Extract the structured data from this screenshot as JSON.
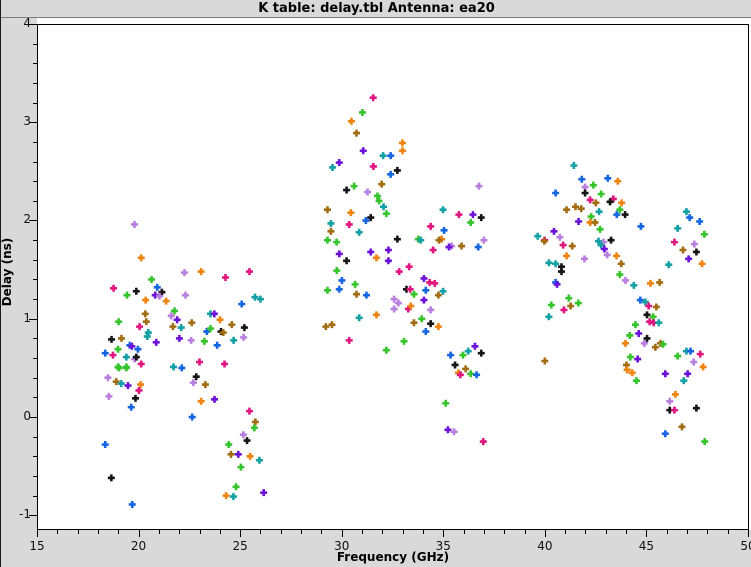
{
  "window": {
    "title": "K table: delay.tbl   Antenna: ea20"
  },
  "axes": {
    "x_title": "Frequency (GHz)",
    "y_title": "Delay (ns)"
  },
  "chart_data": {
    "type": "scatter",
    "title": "K table: delay.tbl   Antenna: ea20",
    "xlabel": "Frequency (GHz)",
    "ylabel": "Delay (ns)",
    "xlim": [
      15,
      50
    ],
    "ylim": [
      -1.14,
      4
    ],
    "x_major_ticks": [
      15,
      20,
      25,
      30,
      35,
      40,
      45,
      50
    ],
    "y_major_ticks": [
      4,
      3,
      2,
      1,
      0,
      -1
    ],
    "x_minor_step": 1,
    "y_minor_step": 0.2,
    "grid": false,
    "legend": "none",
    "marker": "plus",
    "marker_size_px": 7,
    "background": "#ffffff",
    "figure_background": "#d9d9d9",
    "palette": {
      "B": "#1565e0",
      "G": "#35c42c",
      "P": "#e01580",
      "T": "#12a0a4",
      "V": "#6c12d8",
      "O": "#b97fe0",
      "K": "#151515",
      "R": "#ef830f",
      "D": "#a26d12"
    },
    "points": [
      [
        19.75,
        1.97,
        "O"
      ],
      [
        20.08,
        1.63,
        "R"
      ],
      [
        20.59,
        1.41,
        "G"
      ],
      [
        18.72,
        1.32,
        "P"
      ],
      [
        25.41,
        1.49,
        "P"
      ],
      [
        24.23,
        1.43,
        "P"
      ],
      [
        23.03,
        1.49,
        "R"
      ],
      [
        22.21,
        1.48,
        "O"
      ],
      [
        19.84,
        1.29,
        "K"
      ],
      [
        19.38,
        1.25,
        "G"
      ],
      [
        20.87,
        1.33,
        "B"
      ],
      [
        21.1,
        1.28,
        "K"
      ],
      [
        20.77,
        1.25,
        "V"
      ],
      [
        20.98,
        1.24,
        "O"
      ],
      [
        22.26,
        1.25,
        "O"
      ],
      [
        21.31,
        1.19,
        "R"
      ],
      [
        25.95,
        1.21,
        "T"
      ],
      [
        25.68,
        1.23,
        "T"
      ],
      [
        25.03,
        1.16,
        "B"
      ],
      [
        20.0,
        0.93,
        "P"
      ],
      [
        18.97,
        0.98,
        "G"
      ],
      [
        20.28,
        1.06,
        "D"
      ],
      [
        20.43,
        0.87,
        "T"
      ],
      [
        20.3,
        1.2,
        "R"
      ],
      [
        20.33,
        0.98,
        "D"
      ],
      [
        20.38,
        0.83,
        "T"
      ],
      [
        18.94,
        0.7,
        "G"
      ],
      [
        19.35,
        0.62,
        "T"
      ],
      [
        18.62,
        0.8,
        "K"
      ],
      [
        19.11,
        0.81,
        "D"
      ],
      [
        19.52,
        0.74,
        "B"
      ],
      [
        19.62,
        0.73,
        "V"
      ],
      [
        18.31,
        0.66,
        "B"
      ],
      [
        18.69,
        0.64,
        "P"
      ],
      [
        19.76,
        0.6,
        "O"
      ],
      [
        18.99,
        0.51,
        "G"
      ],
      [
        19.35,
        0.52,
        "G"
      ],
      [
        20.82,
        0.77,
        "V"
      ],
      [
        23.49,
        1.06,
        "T"
      ],
      [
        23.68,
        1.06,
        "V"
      ],
      [
        21.72,
        1.09,
        "G"
      ],
      [
        21.85,
        1.0,
        "V"
      ],
      [
        21.56,
        1.04,
        "O"
      ],
      [
        22.57,
        0.97,
        "D"
      ],
      [
        23.96,
        1.0,
        "R"
      ],
      [
        23.31,
        0.88,
        "B"
      ],
      [
        23.49,
        0.91,
        "G"
      ],
      [
        24.54,
        0.95,
        "D"
      ],
      [
        24.01,
        0.88,
        "K"
      ],
      [
        24.12,
        0.87,
        "D"
      ],
      [
        25.16,
        0.92,
        "K"
      ],
      [
        22.05,
        0.92,
        "T"
      ],
      [
        21.64,
        0.93,
        "D"
      ],
      [
        21.96,
        0.81,
        "V"
      ],
      [
        22.54,
        0.79,
        "O"
      ],
      [
        24.63,
        0.79,
        "T"
      ],
      [
        25.12,
        0.82,
        "O"
      ],
      [
        23.19,
        0.78,
        "G"
      ],
      [
        23.82,
        0.74,
        "B"
      ],
      [
        20.08,
        0.55,
        "P"
      ],
      [
        19.84,
        0.62,
        "K"
      ],
      [
        19.92,
        0.7,
        "B"
      ],
      [
        18.94,
        0.52,
        "G"
      ],
      [
        19.35,
        0.51,
        "G"
      ],
      [
        18.44,
        0.41,
        "O"
      ],
      [
        18.85,
        0.37,
        "D"
      ],
      [
        19.1,
        0.35,
        "T"
      ],
      [
        19.43,
        0.33,
        "V"
      ],
      [
        20.05,
        0.34,
        "R"
      ],
      [
        19.97,
        0.28,
        "P"
      ],
      [
        18.49,
        0.22,
        "O"
      ],
      [
        19.8,
        0.2,
        "K"
      ],
      [
        19.59,
        0.11,
        "B"
      ],
      [
        21.67,
        0.52,
        "T"
      ],
      [
        22.08,
        0.51,
        "B"
      ],
      [
        22.79,
        0.42,
        "K"
      ],
      [
        22.65,
        0.36,
        "O"
      ],
      [
        23.24,
        0.34,
        "D"
      ],
      [
        23.03,
        0.17,
        "R"
      ],
      [
        23.69,
        0.19,
        "V"
      ],
      [
        22.59,
        0.01,
        "B"
      ],
      [
        25.41,
        0.07,
        "P"
      ],
      [
        25.7,
        -0.04,
        "D"
      ],
      [
        25.65,
        -0.1,
        "G"
      ],
      [
        25.11,
        -0.17,
        "O"
      ],
      [
        25.29,
        -0.23,
        "K"
      ],
      [
        24.39,
        -0.27,
        "G"
      ],
      [
        24.5,
        -0.37,
        "D"
      ],
      [
        24.86,
        -0.37,
        "V"
      ],
      [
        25.44,
        -0.39,
        "R"
      ],
      [
        25.9,
        -0.43,
        "T"
      ],
      [
        24.99,
        -0.5,
        "G"
      ],
      [
        18.31,
        -0.27,
        "B"
      ],
      [
        18.61,
        -0.61,
        "K"
      ],
      [
        24.75,
        -0.7,
        "G"
      ],
      [
        24.26,
        -0.79,
        "R"
      ],
      [
        24.62,
        -0.8,
        "T"
      ],
      [
        26.11,
        -0.76,
        "V"
      ],
      [
        19.64,
        -0.88,
        "B"
      ],
      [
        22.95,
        0.57,
        "P"
      ],
      [
        24.18,
        0.55,
        "P"
      ],
      [
        31.5,
        3.26,
        "P"
      ],
      [
        30.97,
        3.11,
        "G"
      ],
      [
        30.43,
        3.02,
        "R"
      ],
      [
        30.68,
        2.9,
        "D"
      ],
      [
        32.94,
        2.8,
        "R"
      ],
      [
        32.94,
        2.72,
        "R"
      ],
      [
        31.01,
        2.72,
        "V"
      ],
      [
        31.99,
        2.67,
        "T"
      ],
      [
        32.36,
        2.67,
        "B"
      ],
      [
        31.51,
        2.56,
        "P"
      ],
      [
        29.5,
        2.55,
        "T"
      ],
      [
        29.83,
        2.6,
        "V"
      ],
      [
        32.69,
        2.52,
        "K"
      ],
      [
        32.36,
        2.48,
        "B"
      ],
      [
        31.92,
        2.38,
        "D"
      ],
      [
        30.56,
        2.36,
        "G"
      ],
      [
        30.19,
        2.32,
        "K"
      ],
      [
        31.22,
        2.3,
        "O"
      ],
      [
        31.71,
        2.26,
        "G"
      ],
      [
        31.79,
        2.21,
        "G"
      ],
      [
        32.01,
        2.15,
        "T"
      ],
      [
        36.71,
        2.36,
        "O"
      ],
      [
        29.25,
        2.12,
        "D"
      ],
      [
        30.4,
        2.09,
        "R"
      ],
      [
        34.94,
        2.12,
        "T"
      ],
      [
        32.15,
        2.08,
        "G"
      ],
      [
        31.38,
        2.04,
        "K"
      ],
      [
        29.42,
        1.98,
        "T"
      ],
      [
        30.32,
        1.97,
        "P"
      ],
      [
        31.14,
        2.01,
        "B"
      ],
      [
        30.81,
        1.89,
        "T"
      ],
      [
        34.33,
        1.95,
        "P"
      ],
      [
        35.72,
        2.07,
        "P"
      ],
      [
        36.3,
        1.99,
        "G"
      ],
      [
        34.99,
        1.91,
        "B"
      ],
      [
        36.41,
        2.07,
        "V"
      ],
      [
        36.82,
        2.04,
        "K"
      ],
      [
        29.42,
        1.9,
        "D"
      ],
      [
        29.25,
        1.81,
        "G"
      ],
      [
        29.7,
        1.79,
        "G"
      ],
      [
        34.87,
        1.82,
        "R"
      ],
      [
        34.74,
        1.81,
        "D"
      ],
      [
        33.72,
        1.82,
        "G"
      ],
      [
        33.84,
        1.81,
        "T"
      ],
      [
        32.69,
        1.82,
        "K"
      ],
      [
        34.45,
        1.71,
        "P"
      ],
      [
        35.36,
        1.75,
        "O"
      ],
      [
        35.23,
        1.74,
        "V"
      ],
      [
        36.67,
        1.74,
        "B"
      ],
      [
        36.95,
        1.81,
        "O"
      ],
      [
        35.85,
        1.75,
        "D"
      ],
      [
        31.66,
        1.63,
        "R"
      ],
      [
        32.25,
        1.6,
        "V"
      ],
      [
        29.83,
        1.67,
        "V"
      ],
      [
        30.19,
        1.6,
        "K"
      ],
      [
        31.38,
        1.69,
        "V"
      ],
      [
        32.25,
        1.71,
        "V"
      ],
      [
        32.78,
        1.49,
        "P"
      ],
      [
        33.27,
        1.54,
        "P"
      ],
      [
        29.96,
        1.4,
        "B"
      ],
      [
        30.61,
        1.36,
        "G"
      ],
      [
        29.83,
        1.31,
        "B"
      ],
      [
        29.71,
        1.5,
        "G"
      ],
      [
        29.25,
        1.3,
        "G"
      ],
      [
        30.68,
        1.26,
        "D"
      ],
      [
        31.17,
        1.25,
        "B"
      ],
      [
        34.0,
        1.42,
        "V"
      ],
      [
        34.28,
        1.38,
        "P"
      ],
      [
        34.53,
        1.37,
        "P"
      ],
      [
        33.14,
        1.31,
        "K"
      ],
      [
        33.32,
        1.31,
        "P"
      ],
      [
        34.09,
        1.3,
        "B"
      ],
      [
        34.94,
        1.29,
        "T"
      ],
      [
        34.71,
        1.25,
        "D"
      ],
      [
        33.51,
        1.26,
        "G"
      ],
      [
        32.53,
        1.21,
        "O"
      ],
      [
        32.74,
        1.17,
        "O"
      ],
      [
        34.0,
        1.2,
        "V"
      ],
      [
        33.23,
        1.11,
        "P"
      ],
      [
        32.53,
        1.11,
        "O"
      ],
      [
        33.35,
        1.14,
        "R"
      ],
      [
        34.33,
        1.1,
        "O"
      ],
      [
        30.81,
        1.02,
        "T"
      ],
      [
        31.66,
        1.05,
        "R"
      ],
      [
        29.17,
        0.93,
        "D"
      ],
      [
        29.47,
        0.95,
        "D"
      ],
      [
        33.89,
        1.01,
        "G"
      ],
      [
        33.51,
        0.97,
        "D"
      ],
      [
        34.33,
        0.96,
        "K"
      ],
      [
        34.71,
        0.93,
        "R"
      ],
      [
        34.09,
        0.88,
        "B"
      ],
      [
        30.32,
        0.79,
        "P"
      ],
      [
        33.02,
        0.78,
        "G"
      ],
      [
        32.15,
        0.69,
        "G"
      ],
      [
        35.31,
        0.64,
        "B"
      ],
      [
        35.92,
        0.64,
        "G"
      ],
      [
        36.18,
        0.68,
        "T"
      ],
      [
        36.51,
        0.73,
        "V"
      ],
      [
        36.82,
        0.66,
        "K"
      ],
      [
        35.53,
        0.54,
        "K"
      ],
      [
        36.05,
        0.5,
        "D"
      ],
      [
        35.7,
        0.46,
        "R"
      ],
      [
        35.79,
        0.44,
        "P"
      ],
      [
        36.3,
        0.45,
        "G"
      ],
      [
        36.59,
        0.44,
        "B"
      ],
      [
        35.07,
        0.15,
        "G"
      ],
      [
        35.18,
        -0.12,
        "V"
      ],
      [
        35.48,
        -0.14,
        "O"
      ],
      [
        36.92,
        -0.24,
        "P"
      ],
      [
        43.05,
        2.44,
        "B"
      ],
      [
        43.54,
        2.41,
        "R"
      ],
      [
        42.34,
        2.37,
        "G"
      ],
      [
        41.77,
        2.43,
        "B"
      ],
      [
        41.93,
        2.35,
        "O"
      ],
      [
        41.93,
        2.29,
        "K"
      ],
      [
        42.72,
        2.28,
        "G"
      ],
      [
        42.18,
        2.22,
        "P"
      ],
      [
        43.32,
        2.23,
        "P"
      ],
      [
        43.16,
        2.2,
        "K"
      ],
      [
        43.73,
        2.19,
        "R"
      ],
      [
        42.46,
        2.19,
        "D"
      ],
      [
        41.74,
        2.13,
        "D"
      ],
      [
        42.62,
        2.1,
        "T"
      ],
      [
        42.23,
        2.05,
        "G"
      ],
      [
        43.49,
        2.07,
        "B"
      ],
      [
        43.9,
        2.07,
        "K"
      ],
      [
        41.61,
        2.0,
        "V"
      ],
      [
        42.18,
        1.99,
        "R"
      ],
      [
        42.42,
        1.99,
        "D"
      ],
      [
        42.67,
        1.92,
        "G"
      ],
      [
        44.68,
        1.95,
        "B"
      ],
      [
        42.59,
        1.8,
        "T"
      ],
      [
        42.84,
        1.79,
        "O"
      ],
      [
        43.21,
        1.81,
        "K"
      ],
      [
        42.72,
        1.76,
        "T"
      ],
      [
        42.88,
        1.72,
        "V"
      ],
      [
        41.38,
        2.57,
        "T"
      ],
      [
        40.48,
        2.29,
        "B"
      ],
      [
        41.02,
        2.12,
        "D"
      ],
      [
        41.46,
        2.15,
        "D"
      ],
      [
        43.64,
        2.12,
        "G"
      ],
      [
        39.94,
        1.81,
        "P"
      ],
      [
        39.6,
        1.85,
        "T"
      ],
      [
        40.69,
        1.84,
        "O"
      ],
      [
        40.4,
        1.9,
        "V"
      ],
      [
        39.92,
        1.8,
        "D"
      ],
      [
        40.85,
        1.76,
        "P"
      ],
      [
        41.3,
        1.75,
        "D"
      ],
      [
        41.02,
        1.65,
        "R"
      ],
      [
        40.15,
        1.58,
        "T"
      ],
      [
        40.48,
        1.57,
        "T"
      ],
      [
        40.77,
        1.54,
        "K"
      ],
      [
        40.77,
        1.49,
        "K"
      ],
      [
        40.48,
        1.38,
        "B"
      ],
      [
        40.55,
        1.36,
        "V"
      ],
      [
        41.9,
        1.62,
        "O"
      ],
      [
        43.02,
        1.66,
        "O"
      ],
      [
        43.48,
        1.65,
        "R"
      ],
      [
        43.71,
        1.57,
        "D"
      ],
      [
        43.64,
        1.46,
        "G"
      ],
      [
        43.92,
        1.4,
        "O"
      ],
      [
        44.33,
        1.35,
        "T"
      ],
      [
        45.15,
        1.37,
        "R"
      ],
      [
        45.6,
        1.38,
        "D"
      ],
      [
        46.05,
        1.56,
        "T"
      ],
      [
        46.92,
        2.1,
        "T"
      ],
      [
        47.08,
        2.04,
        "B"
      ],
      [
        47.57,
        2.0,
        "B"
      ],
      [
        47.8,
        1.87,
        "G"
      ],
      [
        46.49,
        1.93,
        "T"
      ],
      [
        46.33,
        1.79,
        "P"
      ],
      [
        47.31,
        1.77,
        "O"
      ],
      [
        47.41,
        1.69,
        "K"
      ],
      [
        46.75,
        1.71,
        "D"
      ],
      [
        47.03,
        1.62,
        "V"
      ],
      [
        47.69,
        1.57,
        "R"
      ],
      [
        40.27,
        1.15,
        "G"
      ],
      [
        40.89,
        1.1,
        "P"
      ],
      [
        41.22,
        1.14,
        "D"
      ],
      [
        41.6,
        1.17,
        "G"
      ],
      [
        41.13,
        1.22,
        "G"
      ],
      [
        40.15,
        1.03,
        "T"
      ],
      [
        44.65,
        1.2,
        "B"
      ],
      [
        44.9,
        1.18,
        "T"
      ],
      [
        45.06,
        1.14,
        "P"
      ],
      [
        45.44,
        1.13,
        "D"
      ],
      [
        44.98,
        1.05,
        "K"
      ],
      [
        45.28,
        1.03,
        "G"
      ],
      [
        45.11,
        0.98,
        "P"
      ],
      [
        45.31,
        0.97,
        "P"
      ],
      [
        45.56,
        0.97,
        "T"
      ],
      [
        44.41,
        0.95,
        "G"
      ],
      [
        44.13,
        0.84,
        "G"
      ],
      [
        44.57,
        0.86,
        "V"
      ],
      [
        44.98,
        0.81,
        "K"
      ],
      [
        43.92,
        0.76,
        "R"
      ],
      [
        44.85,
        0.76,
        "O"
      ],
      [
        45.39,
        0.72,
        "D"
      ],
      [
        45.64,
        0.76,
        "D"
      ],
      [
        45.77,
        0.75,
        "G"
      ],
      [
        39.95,
        0.58,
        "D"
      ],
      [
        46.49,
        0.63,
        "G"
      ],
      [
        46.92,
        0.68,
        "T"
      ],
      [
        47.12,
        0.68,
        "B"
      ],
      [
        47.6,
        0.65,
        "P"
      ],
      [
        44.16,
        0.62,
        "G"
      ],
      [
        44.52,
        0.6,
        "V"
      ],
      [
        47.28,
        0.57,
        "O"
      ],
      [
        43.97,
        0.54,
        "D"
      ],
      [
        47.74,
        0.52,
        "R"
      ],
      [
        44.0,
        0.49,
        "R"
      ],
      [
        44.25,
        0.46,
        "R"
      ],
      [
        45.88,
        0.45,
        "V"
      ],
      [
        46.98,
        0.45,
        "V"
      ],
      [
        44.46,
        0.38,
        "G"
      ],
      [
        46.79,
        0.38,
        "T"
      ],
      [
        46.38,
        0.24,
        "R"
      ],
      [
        46.1,
        0.17,
        "O"
      ],
      [
        46.1,
        0.08,
        "K"
      ],
      [
        46.33,
        0.08,
        "P"
      ],
      [
        47.41,
        0.1,
        "K"
      ],
      [
        46.7,
        -0.09,
        "D"
      ],
      [
        45.88,
        -0.16,
        "B"
      ],
      [
        47.82,
        -0.24,
        "G"
      ]
    ]
  }
}
